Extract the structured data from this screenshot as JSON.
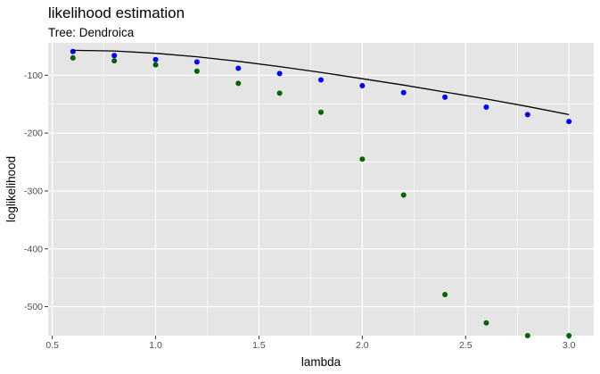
{
  "chart_data": {
    "type": "scatter",
    "title": "likelihood estimation",
    "subtitle": "Tree: Dendroica",
    "xlabel": "lambda",
    "ylabel": "loglikelihood",
    "xlim": [
      0.48,
      3.12
    ],
    "ylim": [
      -550,
      -44
    ],
    "x_ticks": [
      0.5,
      1.0,
      1.5,
      2.0,
      2.5,
      3.0
    ],
    "x_tick_labels": [
      "0.5",
      "1.0",
      "1.5",
      "2.0",
      "2.5",
      "3.0"
    ],
    "y_ticks": [
      -100,
      -200,
      -300,
      -400,
      -500
    ],
    "y_tick_labels": [
      "-100",
      "-200",
      "-300",
      "-400",
      "-500"
    ],
    "grid": true,
    "background": "#E5E5E5",
    "gridline_color": "#FFFFFF",
    "series": [
      {
        "kind": "points",
        "color": "#006400",
        "x": [
          0.6,
          0.8,
          1.0,
          1.2,
          1.4,
          1.6,
          1.8,
          2.0,
          2.2,
          2.4,
          2.6,
          2.8,
          3.0
        ],
        "values": [
          -70,
          -75,
          -82,
          -93,
          -114,
          -131,
          -164,
          -245,
          -307,
          -479,
          -528,
          -550,
          -550
        ]
      },
      {
        "kind": "points",
        "color": "#0000FF",
        "x": [
          0.6,
          0.8,
          1.0,
          1.2,
          1.4,
          1.6,
          1.8,
          2.0,
          2.2,
          2.4,
          2.6,
          2.8,
          3.0
        ],
        "values": [
          -59,
          -66,
          -73,
          -77,
          -88,
          -97,
          -108,
          -118,
          -130,
          -138,
          -155,
          -168,
          -180
        ]
      },
      {
        "kind": "line",
        "color": "#000000",
        "x": [
          0.6,
          0.8,
          1.0,
          1.2,
          1.4,
          1.6,
          1.8,
          2.0,
          2.2,
          2.4,
          2.6,
          2.8,
          3.0
        ],
        "values": [
          -57,
          -58,
          -62,
          -68,
          -76,
          -85,
          -95,
          -106,
          -117,
          -129,
          -141,
          -154,
          -168
        ]
      }
    ]
  }
}
